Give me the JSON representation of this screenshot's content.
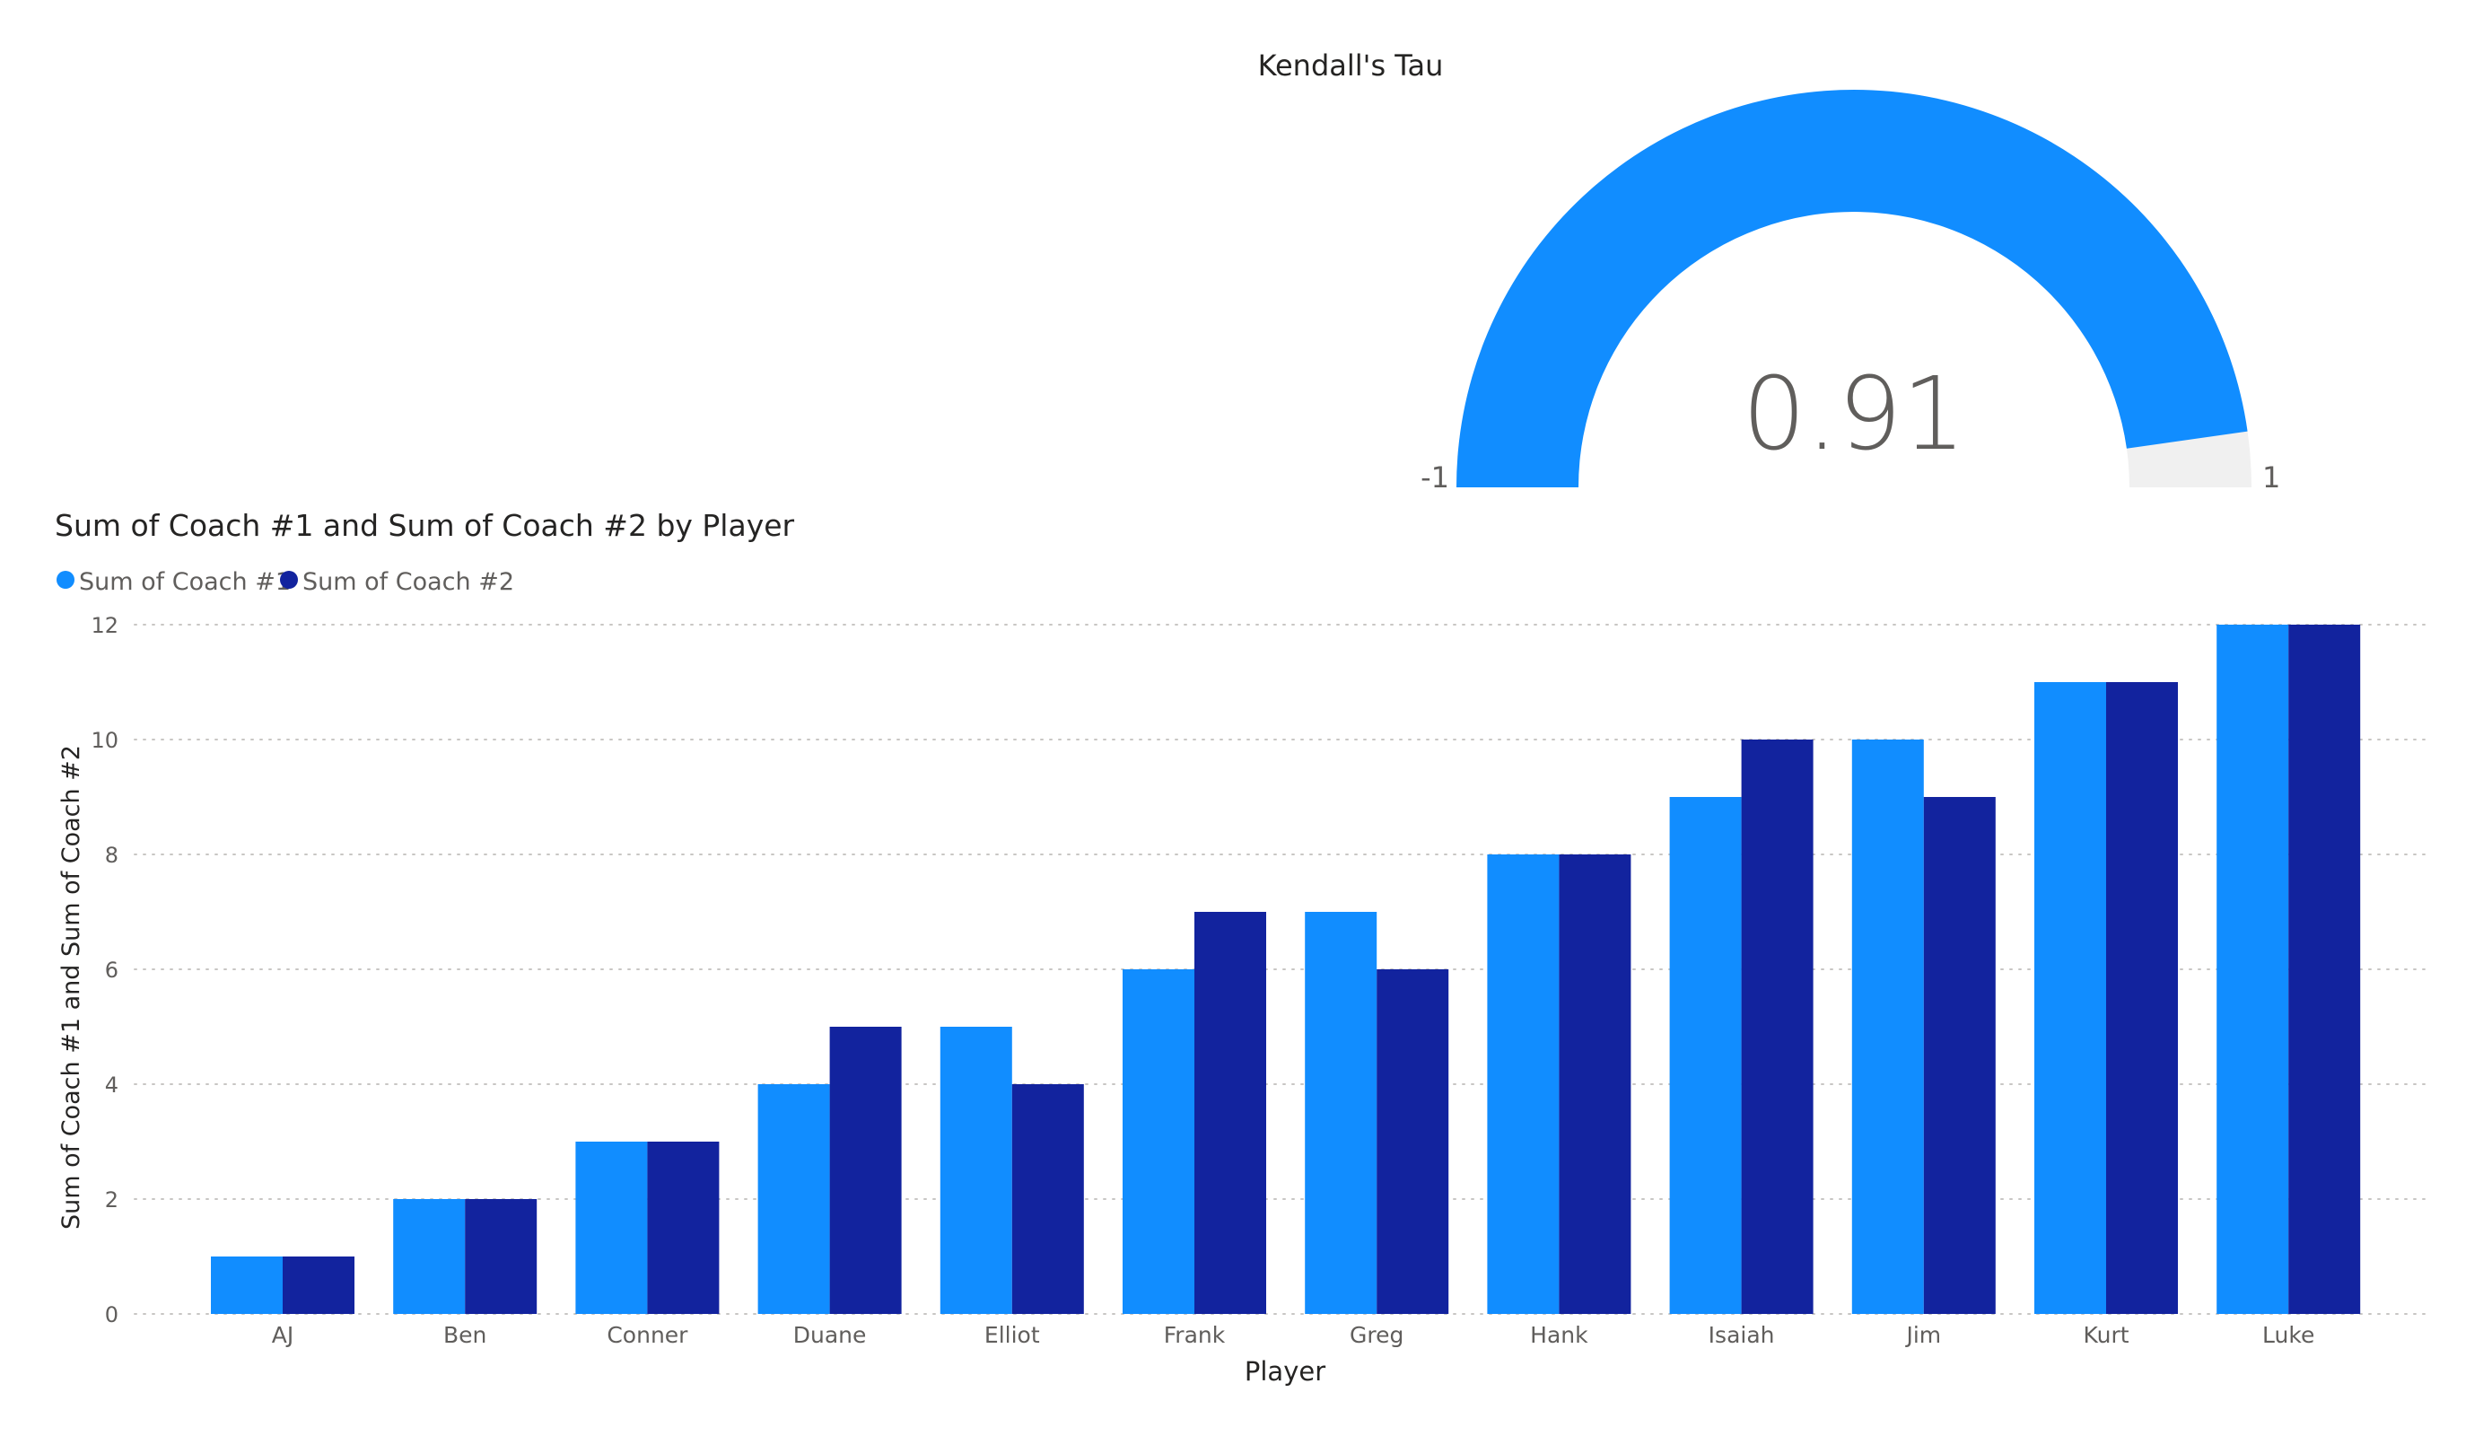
{
  "gauge": {
    "title": "Kendall's Tau",
    "value_label": "0.91",
    "value": 0.91,
    "min": -1,
    "max": 1,
    "min_label": "-1",
    "max_label": "1",
    "fill_color": "#118DFF",
    "track_color": "#F0F0F0"
  },
  "chart_data": {
    "type": "bar",
    "title": "Sum of Coach #1 and Sum of Coach #2 by Player",
    "xlabel": "Player",
    "ylabel": "Sum of Coach #1 and Sum of Coach #2",
    "categories": [
      "AJ",
      "Ben",
      "Conner",
      "Duane",
      "Elliot",
      "Frank",
      "Greg",
      "Hank",
      "Isaiah",
      "Jim",
      "Kurt",
      "Luke"
    ],
    "series": [
      {
        "name": "Sum of Coach #1",
        "color": "#118DFF",
        "values": [
          1,
          2,
          3,
          4,
          5,
          6,
          7,
          8,
          9,
          10,
          11,
          12
        ]
      },
      {
        "name": "Sum of Coach #2",
        "color": "#12239E",
        "values": [
          1,
          2,
          3,
          5,
          4,
          7,
          6,
          8,
          10,
          9,
          11,
          12
        ]
      }
    ],
    "ylim": [
      0,
      12
    ],
    "yticks": [
      "0",
      "2",
      "4",
      "6",
      "8",
      "10",
      "12"
    ],
    "grid": true,
    "legend": "top-left"
  }
}
